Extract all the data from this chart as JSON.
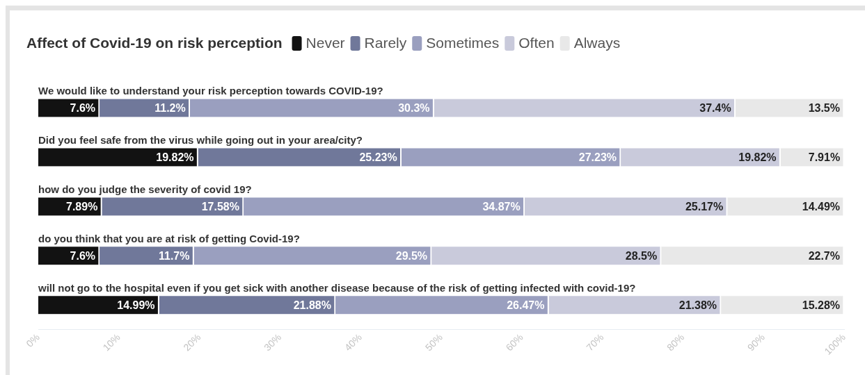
{
  "chart_data": {
    "type": "bar",
    "title": "Affect of Covid-19 on risk perception",
    "orientation": "horizontal",
    "stacked": true,
    "grid": false,
    "legend": "top",
    "categories": [
      "We would like to understand your risk perception towards COVID-19?",
      "Did you feel safe from the virus while going out in your area/city?",
      "how do you judge the severity of covid 19?",
      "do you think that you are at risk of getting Covid-19?",
      "will not go to the hospital even if you get sick with another disease because of the risk of getting infected with covid-19?"
    ],
    "series": [
      {
        "name": "Never",
        "color": "#121212",
        "values": [
          7.6,
          19.82,
          7.89,
          7.6,
          14.99
        ],
        "value_labels": [
          "7.6%",
          "19.82%",
          "7.89%",
          "7.6%",
          "14.99%"
        ]
      },
      {
        "name": "Rarely",
        "color": "#70789a",
        "values": [
          11.2,
          25.23,
          17.58,
          11.7,
          21.88
        ],
        "value_labels": [
          "11.2%",
          "25.23%",
          "17.58%",
          "11.7%",
          "21.88%"
        ]
      },
      {
        "name": "Sometimes",
        "color": "#9a9fbf",
        "values": [
          30.3,
          27.23,
          34.87,
          29.5,
          26.47
        ],
        "value_labels": [
          "30.3%",
          "27.23%",
          "34.87%",
          "29.5%",
          "26.47%"
        ]
      },
      {
        "name": "Often",
        "color": "#c9cadb",
        "values": [
          37.4,
          19.82,
          25.17,
          28.5,
          21.38
        ],
        "value_labels": [
          "37.4%",
          "19.82%",
          "25.17%",
          "28.5%",
          "21.38%"
        ]
      },
      {
        "name": "Always",
        "color": "#e8e8e8",
        "values": [
          13.5,
          7.91,
          14.49,
          22.7,
          15.28
        ],
        "value_labels": [
          "13.5%",
          "7.91%",
          "14.49%",
          "22.7%",
          "15.28%"
        ]
      }
    ],
    "xlim": [
      0,
      100
    ],
    "xticks": [
      {
        "value": 0,
        "label": "0%"
      },
      {
        "value": 10,
        "label": "10%"
      },
      {
        "value": 20,
        "label": "20%"
      },
      {
        "value": 30,
        "label": "30%"
      },
      {
        "value": 40,
        "label": "40%"
      },
      {
        "value": 50,
        "label": "50%"
      },
      {
        "value": 60,
        "label": "60%"
      },
      {
        "value": 70,
        "label": "70%"
      },
      {
        "value": 80,
        "label": "80%"
      },
      {
        "value": 90,
        "label": "90%"
      },
      {
        "value": 100,
        "label": "100%"
      }
    ]
  }
}
